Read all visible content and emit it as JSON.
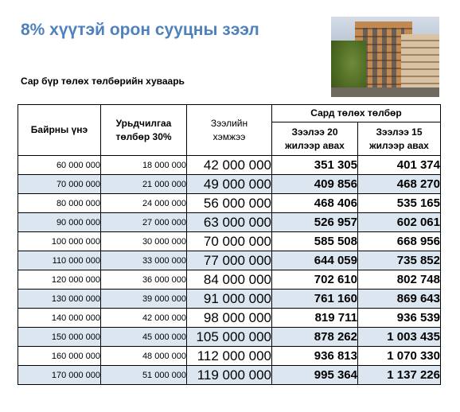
{
  "title": "8% хүүтэй орон сууцны зээл",
  "subtitle": "Сар бүр төлөх төлбөрийн хуваарь",
  "photo": {
    "icon": "apartment-building-photo"
  },
  "table": {
    "headers": {
      "price": "Байрны үнэ",
      "down_payment_line1": "Урьдчилгаа",
      "down_payment_line2": "төлбөр 30%",
      "loan_line1": "Зээлийн",
      "loan_line2": "хэмжээ",
      "monthly_group": "Сард төлөх төлбөр",
      "term20_line1": "Зээлээ 20",
      "term20_line2": "жилээр авах",
      "term15_line1": "Зээлээ 15",
      "term15_line2": "жилээр авах"
    },
    "rows": [
      {
        "price": "60 000 000",
        "down": "18 000 000",
        "loan": "42 000 000",
        "p20": "351 305",
        "p15": "401 374"
      },
      {
        "price": "70 000 000",
        "down": "21 000 000",
        "loan": "49 000 000",
        "p20": "409 856",
        "p15": "468 270"
      },
      {
        "price": "80 000 000",
        "down": "24 000 000",
        "loan": "56 000 000",
        "p20": "468 406",
        "p15": "535 165"
      },
      {
        "price": "90 000 000",
        "down": "27 000 000",
        "loan": "63 000 000",
        "p20": "526 957",
        "p15": "602 061"
      },
      {
        "price": "100 000 000",
        "down": "30 000 000",
        "loan": "70 000 000",
        "p20": "585 508",
        "p15": "668 956"
      },
      {
        "price": "110 000 000",
        "down": "33 000 000",
        "loan": "77 000 000",
        "p20": "644 059",
        "p15": "735 852"
      },
      {
        "price": "120 000 000",
        "down": "36 000 000",
        "loan": "84 000 000",
        "p20": "702 610",
        "p15": "802 748"
      },
      {
        "price": "130 000 000",
        "down": "39 000 000",
        "loan": "91 000 000",
        "p20": "761 160",
        "p15": "869 643"
      },
      {
        "price": "140 000 000",
        "down": "42 000 000",
        "loan": "98 000 000",
        "p20": "819 711",
        "p15": "936 539"
      },
      {
        "price": "150 000 000",
        "down": "45 000 000",
        "loan": "105 000 000",
        "p20": "878 262",
        "p15": "1 003 435"
      },
      {
        "price": "160 000 000",
        "down": "48 000 000",
        "loan": "112 000 000",
        "p20": "936 813",
        "p15": "1 070 330"
      },
      {
        "price": "170 000 000",
        "down": "51 000 000",
        "loan": "119 000 000",
        "p20": "995 364",
        "p15": "1 137 226"
      }
    ],
    "row_stripe_color": "#dce6f1"
  },
  "colors": {
    "title": "#4f81bd"
  }
}
